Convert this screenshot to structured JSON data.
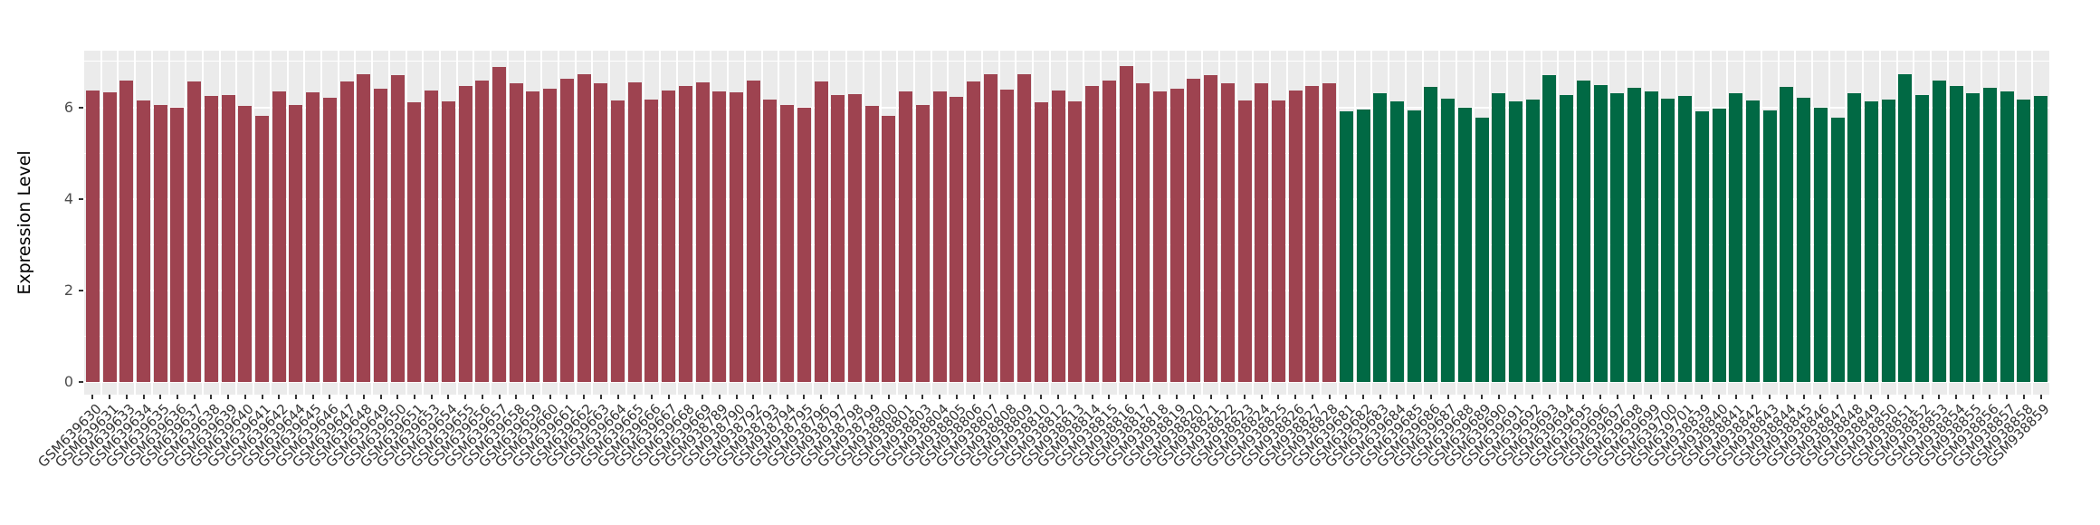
{
  "chart_data": {
    "type": "bar",
    "title": "",
    "xlabel": "",
    "ylabel": "Expression Level",
    "yticks": [
      0,
      2,
      4,
      6
    ],
    "yticks_minor": [
      1,
      3,
      5,
      7
    ],
    "ylim": [
      0,
      7.24
    ],
    "legend_position": "none",
    "panel_bg": "#EBEBEB",
    "grid_color": "#FFFFFF",
    "tick_color": "#333333",
    "colors": {
      "maroon": "#9E4350",
      "green": "#016944"
    },
    "segments": [
      {
        "group": "maroon",
        "categories": [
          "GSM639630",
          "GSM639631",
          "GSM639633",
          "GSM639634",
          "GSM639635",
          "GSM639636",
          "GSM639637",
          "GSM639638",
          "GSM639639",
          "GSM639640",
          "GSM639641",
          "GSM639642",
          "GSM639644",
          "GSM639645",
          "GSM639646",
          "GSM639647",
          "GSM639648",
          "GSM639649",
          "GSM639650",
          "GSM639651",
          "GSM639653",
          "GSM639654",
          "GSM639655",
          "GSM639656",
          "GSM639657",
          "GSM639658",
          "GSM639659",
          "GSM639660",
          "GSM639661",
          "GSM639662",
          "GSM639663",
          "GSM639664",
          "GSM639665",
          "GSM639666",
          "GSM639667",
          "GSM639668",
          "GSM639669"
        ],
        "values": [
          6.36,
          6.32,
          6.59,
          6.15,
          6.05,
          5.99,
          6.57,
          6.25,
          6.27,
          6.04,
          5.82,
          6.35,
          6.06,
          6.33,
          6.21,
          6.56,
          6.72,
          6.4,
          6.7,
          6.1,
          6.36,
          6.12,
          6.47,
          6.59,
          6.88,
          6.52,
          6.34,
          6.41,
          6.62,
          6.72,
          6.53,
          6.14,
          6.54,
          6.16,
          6.37,
          6.46,
          6.54
        ]
      },
      {
        "group": "maroon",
        "categories": [
          "GSM938789",
          "GSM938790",
          "GSM938792",
          "GSM938793",
          "GSM938794",
          "GSM938795",
          "GSM938796",
          "GSM938797",
          "GSM938798",
          "GSM938799",
          "GSM938800",
          "GSM938801",
          "GSM938803",
          "GSM938804",
          "GSM938805",
          "GSM938806",
          "GSM938807",
          "GSM938808",
          "GSM938809",
          "GSM938810",
          "GSM938812",
          "GSM938813",
          "GSM938814",
          "GSM938815",
          "GSM938816",
          "GSM938817",
          "GSM938818",
          "GSM938819",
          "GSM938820",
          "GSM938821",
          "GSM938822",
          "GSM938823",
          "GSM938824",
          "GSM938825",
          "GSM938826",
          "GSM938827",
          "GSM938828"
        ],
        "values": [
          6.35,
          6.32,
          6.59,
          6.16,
          6.05,
          5.99,
          6.57,
          6.26,
          6.28,
          6.04,
          5.82,
          6.35,
          6.06,
          6.34,
          6.22,
          6.57,
          6.73,
          6.39,
          6.72,
          6.1,
          6.36,
          6.12,
          6.47,
          6.59,
          6.89,
          6.52,
          6.34,
          6.41,
          6.62,
          6.7,
          6.52,
          6.14,
          6.53,
          6.15,
          6.37,
          6.46,
          6.52
        ]
      },
      {
        "group": "green",
        "categories": [
          "GSM639681",
          "GSM639682",
          "GSM639683",
          "GSM639684",
          "GSM639685",
          "GSM639686",
          "GSM639687",
          "GSM639688",
          "GSM639689",
          "GSM639690",
          "GSM639691",
          "GSM639692",
          "GSM639693",
          "GSM639694",
          "GSM639695",
          "GSM639696",
          "GSM639697",
          "GSM639698",
          "GSM639699",
          "GSM639700",
          "GSM639701"
        ],
        "values": [
          5.91,
          5.96,
          6.3,
          6.12,
          5.94,
          6.44,
          6.18,
          6.0,
          5.78,
          6.3,
          6.12,
          6.17,
          6.71,
          6.26,
          6.59,
          6.48,
          6.3,
          6.43,
          6.34,
          6.18,
          6.24
        ]
      },
      {
        "group": "green",
        "categories": [
          "GSM938839",
          "GSM938840",
          "GSM938841",
          "GSM938842",
          "GSM938843",
          "GSM938844",
          "GSM938845",
          "GSM938846",
          "GSM938847",
          "GSM938848",
          "GSM938849",
          "GSM938850",
          "GSM938851",
          "GSM938852",
          "GSM938853",
          "GSM938854",
          "GSM938855",
          "GSM938856",
          "GSM938857",
          "GSM938858",
          "GSM938859"
        ],
        "values": [
          5.92,
          5.97,
          6.31,
          6.14,
          5.94,
          6.45,
          6.2,
          6.0,
          5.77,
          6.3,
          6.12,
          6.16,
          6.72,
          6.26,
          6.59,
          6.47,
          6.31,
          6.43,
          6.34,
          6.17,
          6.24
        ]
      }
    ]
  }
}
